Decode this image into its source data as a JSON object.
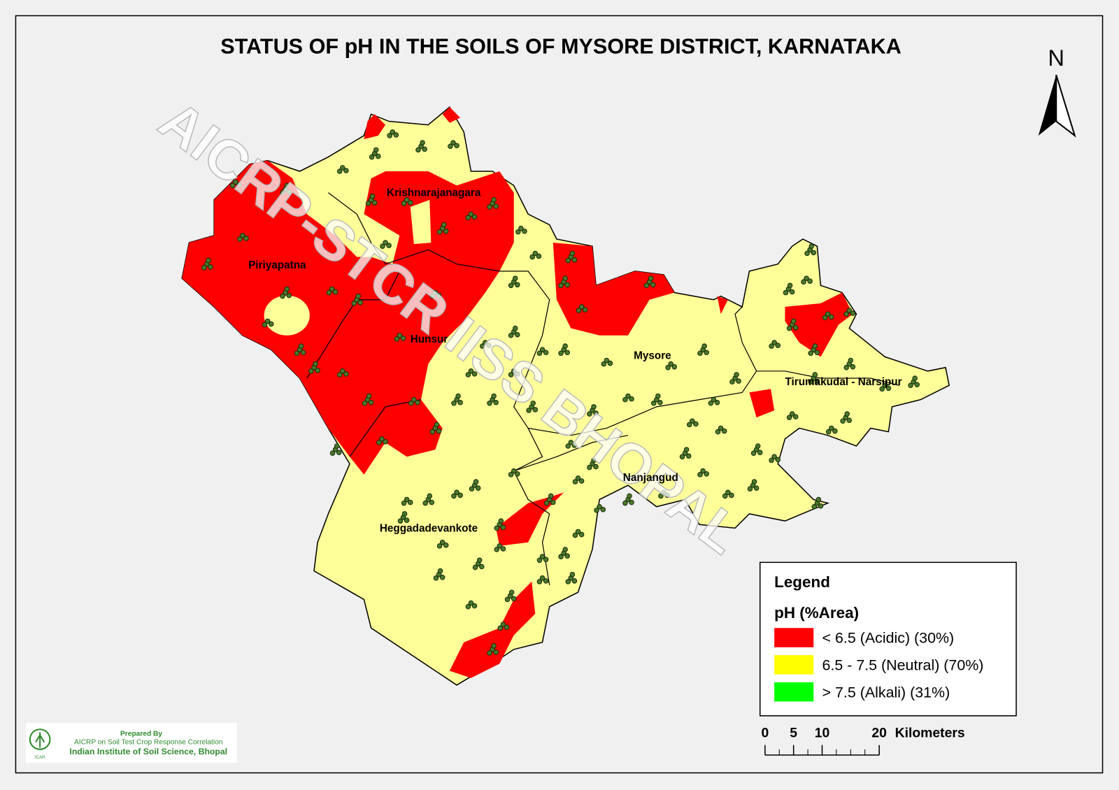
{
  "title": "STATUS OF pH  IN THE SOILS OF MYSORE  DISTRICT, KARNATAKA",
  "north_arrow": "N",
  "watermark": "AICRP-STCR IISS BHOPAL",
  "places": [
    "Krishnarajanagara",
    "Piriyapatna",
    "Hunsur",
    "Mysore",
    "Tirumakudal - Narsipur",
    "Nanjangud",
    "Heggadadevankote"
  ],
  "legend": {
    "title": "Legend",
    "subtitle": "pH (%Area)",
    "items": [
      {
        "label": "< 6.5 (Acidic) (30%)",
        "color": "#ff0000"
      },
      {
        "label": "6.5 - 7.5 (Neutral) (70%)",
        "color": "#ffff00"
      },
      {
        "label": "> 7.5 (Alkali) (31%)",
        "color": "#00ff00"
      }
    ]
  },
  "scale_bar": {
    "ticks": [
      0,
      5,
      10,
      20
    ],
    "unit": "Kilometers"
  },
  "credit": {
    "logo": "ICAR",
    "line1": "Prepared By",
    "line2": "AICRP on Soil Test Crop Response Correlation",
    "line3": "Indian Institute of Soil Science, Bhopal"
  }
}
